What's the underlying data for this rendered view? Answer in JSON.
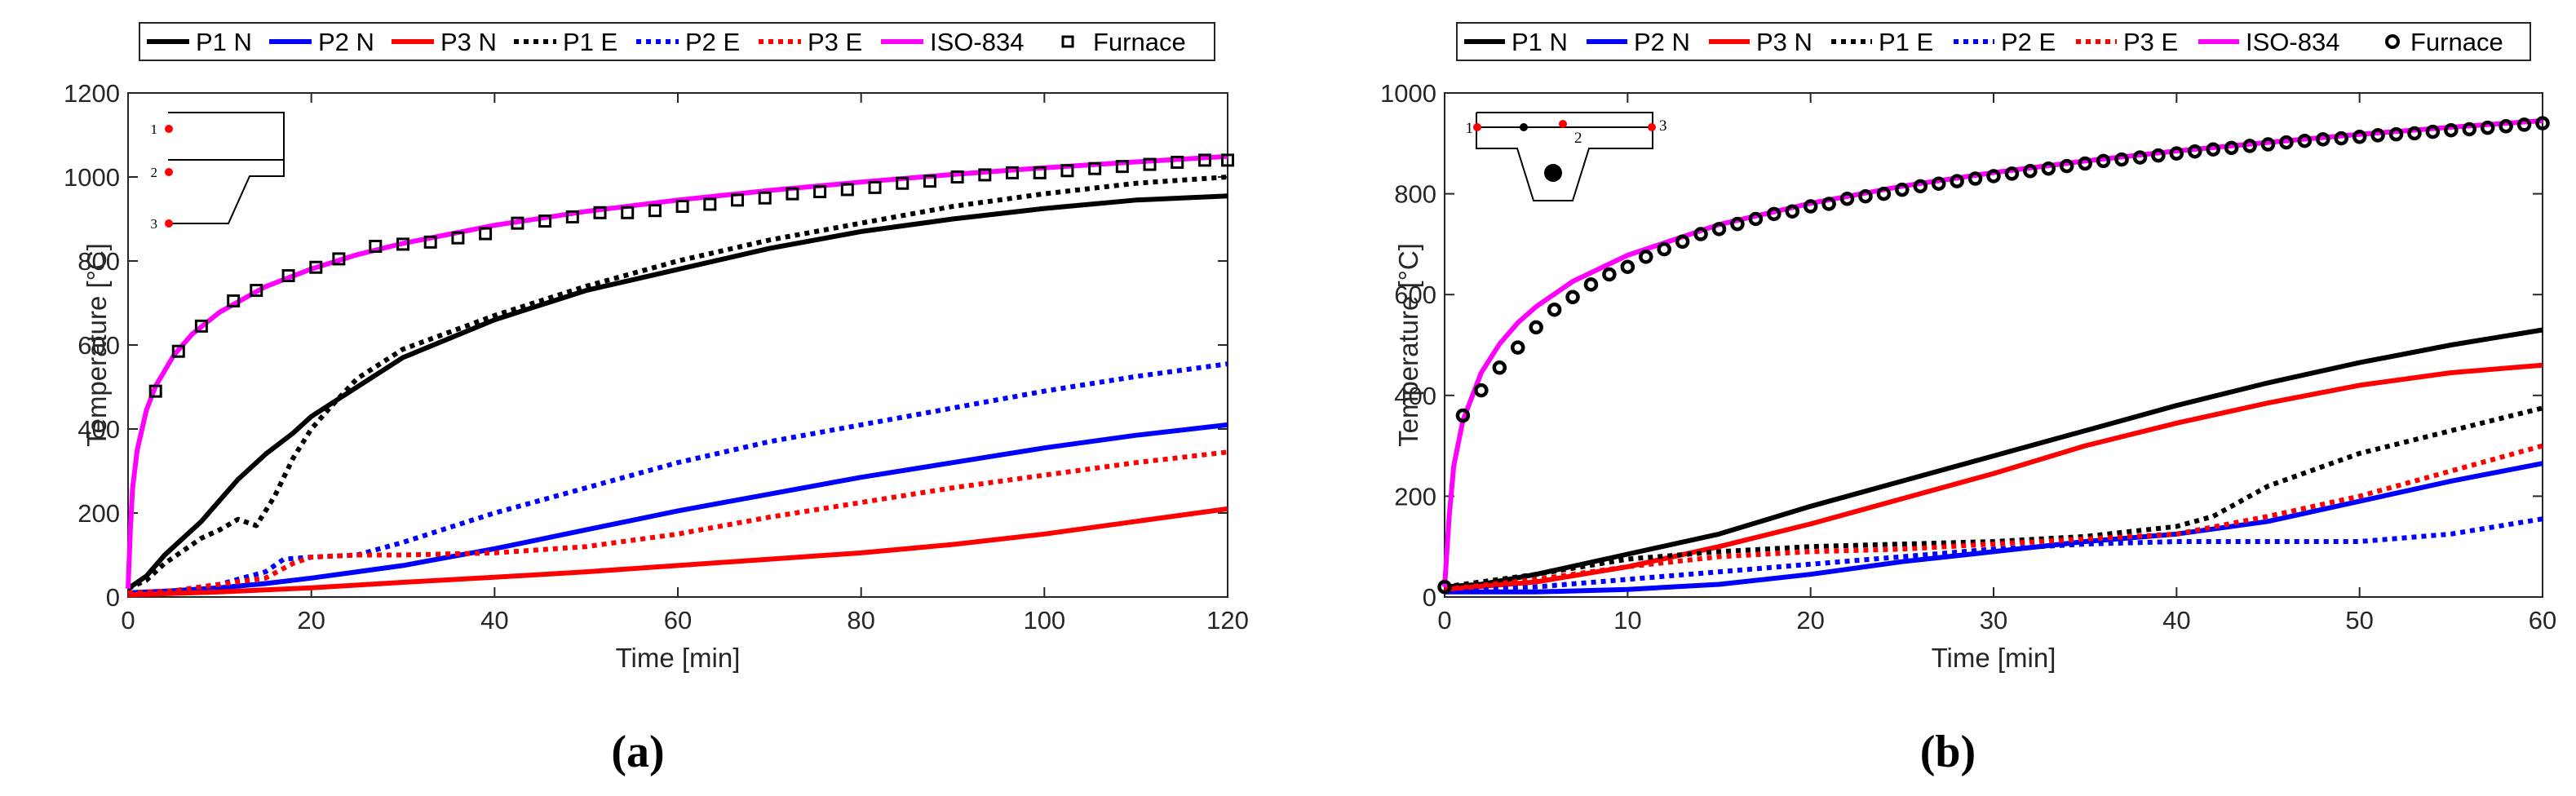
{
  "chart_data": [
    {
      "panel": "(a)",
      "type": "line",
      "xlabel": "Time [min]",
      "ylabel": "Temperature [°C]",
      "xlim": [
        0,
        120
      ],
      "ylim": [
        0,
        1200
      ],
      "xticks": [
        0,
        20,
        40,
        60,
        80,
        100,
        120
      ],
      "yticks": [
        0,
        200,
        400,
        600,
        800,
        1000,
        1200
      ],
      "legend_position": "top",
      "inset_points": [
        "1",
        "2",
        "3"
      ],
      "series": [
        {
          "name": "P1 N",
          "color": "#000000",
          "style": "solid",
          "x": [
            0,
            2,
            4,
            6,
            8,
            10,
            12,
            15,
            18,
            20,
            25,
            30,
            40,
            50,
            60,
            70,
            80,
            90,
            100,
            110,
            120
          ],
          "y": [
            20,
            50,
            100,
            140,
            180,
            230,
            280,
            340,
            390,
            430,
            500,
            570,
            660,
            730,
            780,
            830,
            870,
            900,
            925,
            945,
            955
          ]
        },
        {
          "name": "P2 N",
          "color": "#0000ff",
          "style": "solid",
          "x": [
            0,
            5,
            10,
            15,
            20,
            25,
            30,
            40,
            50,
            60,
            70,
            80,
            90,
            100,
            110,
            120
          ],
          "y": [
            10,
            15,
            22,
            32,
            45,
            60,
            75,
            115,
            160,
            205,
            245,
            285,
            320,
            355,
            385,
            410
          ]
        },
        {
          "name": "P3 N",
          "color": "#ff0000",
          "style": "solid",
          "x": [
            0,
            10,
            20,
            30,
            40,
            50,
            60,
            70,
            80,
            90,
            100,
            110,
            120
          ],
          "y": [
            5,
            12,
            22,
            35,
            47,
            60,
            75,
            90,
            105,
            125,
            150,
            180,
            210
          ]
        },
        {
          "name": "P1 E",
          "color": "#000000",
          "style": "dotted",
          "x": [
            0,
            2,
            4,
            6,
            8,
            10,
            12,
            14,
            16,
            18,
            20,
            22,
            25,
            30,
            40,
            50,
            60,
            70,
            80,
            90,
            100,
            110,
            120
          ],
          "y": [
            20,
            40,
            80,
            110,
            140,
            160,
            185,
            170,
            240,
            330,
            400,
            450,
            520,
            590,
            670,
            740,
            800,
            850,
            890,
            930,
            960,
            985,
            1000
          ]
        },
        {
          "name": "P2 E",
          "color": "#0000ff",
          "style": "dotted",
          "x": [
            0,
            5,
            10,
            15,
            17,
            20,
            25,
            30,
            35,
            40,
            50,
            60,
            70,
            80,
            90,
            100,
            110,
            120
          ],
          "y": [
            10,
            15,
            30,
            60,
            90,
            95,
            100,
            130,
            165,
            200,
            260,
            320,
            370,
            410,
            450,
            490,
            525,
            555
          ]
        },
        {
          "name": "P3 E",
          "color": "#ff0000",
          "style": "dotted",
          "x": [
            0,
            5,
            10,
            15,
            18,
            20,
            25,
            30,
            40,
            50,
            60,
            70,
            80,
            90,
            100,
            110,
            120
          ],
          "y": [
            10,
            15,
            30,
            45,
            80,
            95,
            100,
            100,
            105,
            120,
            150,
            190,
            225,
            260,
            290,
            320,
            345
          ]
        },
        {
          "name": "ISO-834",
          "color": "#ff00ff",
          "style": "solid",
          "x": [
            0,
            0.25,
            0.5,
            1,
            2,
            3,
            5,
            7,
            10,
            15,
            20,
            25,
            30,
            40,
            50,
            60,
            70,
            80,
            90,
            100,
            110,
            120
          ],
          "y": [
            20,
            160,
            260,
            350,
            445,
            502,
            576,
            626,
            678,
            739,
            781,
            815,
            842,
            885,
            918,
            945,
            968,
            988,
            1006,
            1022,
            1036,
            1049
          ]
        },
        {
          "name": "Furnace",
          "color": "#000000",
          "style": "markers",
          "marker": "square",
          "x": [
            3,
            5.5,
            8,
            11.5,
            14,
            17.5,
            20.5,
            23,
            27,
            30,
            33,
            36,
            39,
            42.5,
            45.5,
            48.5,
            51.5,
            54.5,
            57.5,
            60.5,
            63.5,
            66.5,
            69.5,
            72.5,
            75.5,
            78.5,
            81.5,
            84.5,
            87.5,
            90.5,
            93.5,
            96.5,
            99.5,
            102.5,
            105.5,
            108.5,
            111.5,
            114.5,
            117.5,
            120
          ],
          "y": [
            490,
            585,
            645,
            705,
            730,
            765,
            785,
            805,
            835,
            840,
            845,
            855,
            865,
            890,
            895,
            905,
            915,
            915,
            920,
            930,
            935,
            945,
            950,
            960,
            965,
            970,
            975,
            985,
            990,
            1000,
            1005,
            1010,
            1010,
            1015,
            1020,
            1025,
            1030,
            1035,
            1040,
            1040
          ]
        }
      ]
    },
    {
      "panel": "(b)",
      "type": "line",
      "xlabel": "Time [min]",
      "ylabel": "Temperature [°C]",
      "xlim": [
        0,
        60
      ],
      "ylim": [
        0,
        1000
      ],
      "xticks": [
        0,
        10,
        20,
        30,
        40,
        50,
        60
      ],
      "yticks": [
        0,
        200,
        400,
        600,
        800,
        1000
      ],
      "legend_position": "top",
      "inset_points": [
        "1",
        "2",
        "3"
      ],
      "series": [
        {
          "name": "P1 N",
          "color": "#000000",
          "style": "solid",
          "x": [
            0,
            2,
            5,
            10,
            15,
            20,
            25,
            30,
            35,
            40,
            45,
            50,
            55,
            60
          ],
          "y": [
            20,
            25,
            45,
            85,
            125,
            180,
            230,
            280,
            330,
            380,
            425,
            465,
            500,
            530
          ]
        },
        {
          "name": "P2 N",
          "color": "#0000ff",
          "style": "solid",
          "x": [
            0,
            5,
            10,
            15,
            20,
            25,
            30,
            35,
            40,
            45,
            50,
            55,
            60
          ],
          "y": [
            10,
            10,
            15,
            25,
            45,
            70,
            90,
            110,
            125,
            150,
            190,
            230,
            265
          ]
        },
        {
          "name": "P3 N",
          "color": "#ff0000",
          "style": "solid",
          "x": [
            0,
            5,
            10,
            15,
            20,
            25,
            30,
            35,
            40,
            45,
            50,
            55,
            60
          ],
          "y": [
            15,
            30,
            60,
            100,
            145,
            195,
            245,
            300,
            345,
            385,
            420,
            445,
            460
          ]
        },
        {
          "name": "P1 E",
          "color": "#000000",
          "style": "dotted",
          "x": [
            0,
            5,
            10,
            15,
            20,
            25,
            30,
            35,
            40,
            42,
            45,
            50,
            55,
            60
          ],
          "y": [
            20,
            45,
            75,
            90,
            100,
            105,
            110,
            120,
            140,
            160,
            220,
            285,
            330,
            375
          ]
        },
        {
          "name": "P2 E",
          "color": "#0000ff",
          "style": "dotted",
          "x": [
            0,
            5,
            10,
            15,
            20,
            25,
            30,
            35,
            40,
            45,
            50,
            55,
            60
          ],
          "y": [
            10,
            20,
            35,
            50,
            65,
            80,
            95,
            105,
            110,
            110,
            110,
            125,
            155
          ]
        },
        {
          "name": "P3 E",
          "color": "#ff0000",
          "style": "dotted",
          "x": [
            0,
            5,
            10,
            15,
            20,
            25,
            30,
            35,
            40,
            45,
            50,
            55,
            60
          ],
          "y": [
            15,
            35,
            60,
            80,
            90,
            95,
            105,
            115,
            125,
            160,
            200,
            250,
            300
          ]
        },
        {
          "name": "ISO-834",
          "color": "#ff00ff",
          "style": "solid",
          "x": [
            0,
            0.25,
            0.5,
            1,
            2,
            3,
            4,
            5,
            7,
            10,
            15,
            20,
            25,
            30,
            35,
            40,
            45,
            50,
            55,
            60
          ],
          "y": [
            20,
            160,
            260,
            350,
            445,
            502,
            544,
            576,
            626,
            678,
            739,
            781,
            815,
            842,
            865,
            885,
            902,
            918,
            932,
            945
          ]
        },
        {
          "name": "Furnace",
          "color": "#000000",
          "style": "markers",
          "marker": "circle",
          "x": [
            0,
            1,
            2,
            3,
            4,
            5,
            6,
            7,
            8,
            9,
            10,
            11,
            12,
            13,
            14,
            15,
            16,
            17,
            18,
            19,
            20,
            21,
            22,
            23,
            24,
            25,
            26,
            27,
            28,
            29,
            30,
            31,
            32,
            33,
            34,
            35,
            36,
            37,
            38,
            39,
            40,
            41,
            42,
            43,
            44,
            45,
            46,
            47,
            48,
            49,
            50,
            51,
            52,
            53,
            54,
            55,
            56,
            57,
            58,
            59,
            60
          ],
          "y": [
            20,
            360,
            410,
            455,
            495,
            535,
            570,
            595,
            620,
            640,
            655,
            675,
            690,
            705,
            720,
            730,
            740,
            750,
            760,
            765,
            775,
            780,
            790,
            795,
            800,
            808,
            815,
            820,
            825,
            830,
            835,
            840,
            845,
            850,
            855,
            860,
            865,
            868,
            872,
            876,
            880,
            884,
            888,
            891,
            895,
            898,
            902,
            905,
            908,
            910,
            913,
            916,
            918,
            920,
            923,
            926,
            928,
            931,
            934,
            937,
            940
          ]
        }
      ]
    }
  ]
}
